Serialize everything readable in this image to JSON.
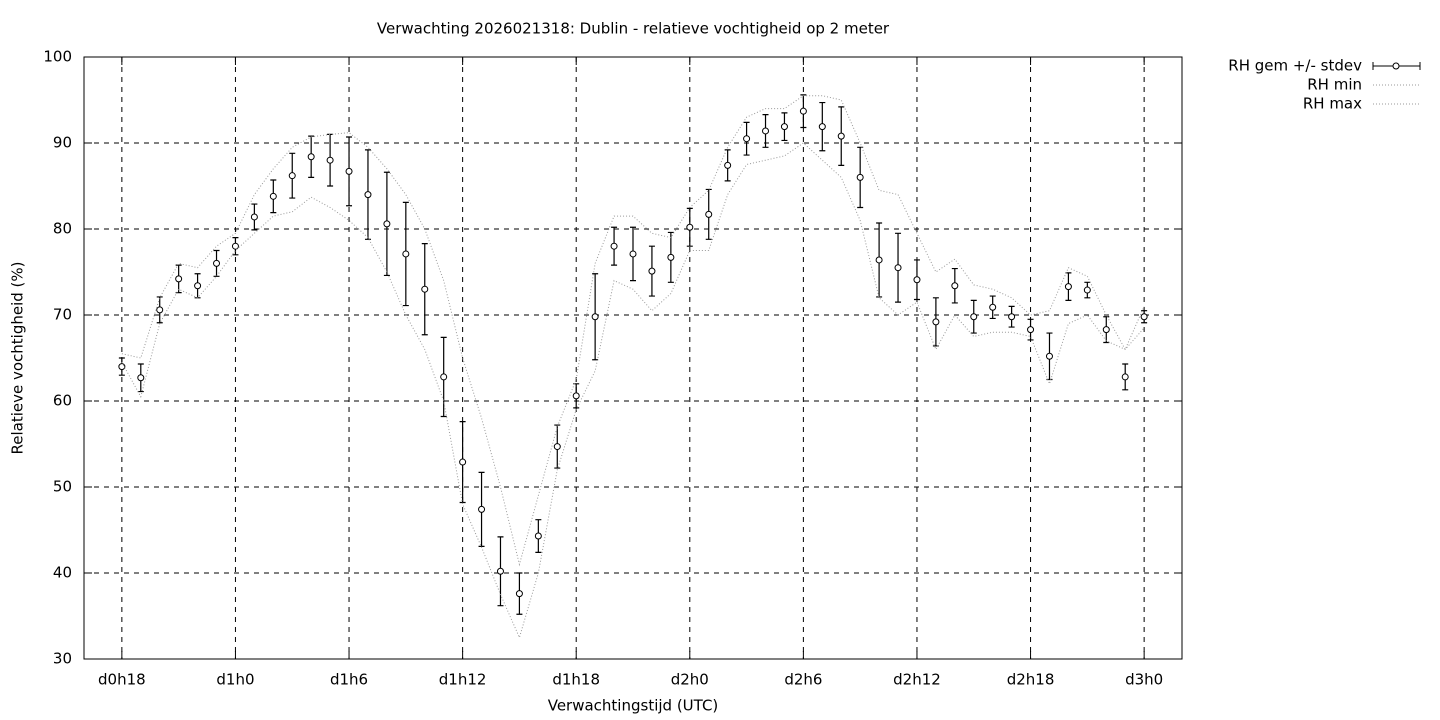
{
  "chart_data": {
    "type": "line",
    "title": "Verwachting 2026021318: Dublin - relatieve vochtigheid op 2 meter",
    "x_label": "Verwachtingstijd (UTC)",
    "y_label": "Relatieve vochtigheid (%)",
    "x": [
      18,
      19,
      20,
      21,
      22,
      23,
      24,
      25,
      26,
      27,
      28,
      29,
      30,
      31,
      32,
      33,
      34,
      35,
      36,
      37,
      38,
      39,
      40,
      41,
      42,
      43,
      44,
      45,
      46,
      47,
      48,
      49,
      50,
      51,
      52,
      53,
      54,
      55,
      56,
      57,
      58,
      59,
      60,
      61,
      62,
      63,
      64,
      65,
      66,
      67,
      68,
      69,
      70,
      71,
      72
    ],
    "xlim": [
      16,
      74
    ],
    "xticks": [
      {
        "value": 18,
        "label": "d0h18"
      },
      {
        "value": 24,
        "label": "d1h0"
      },
      {
        "value": 30,
        "label": "d1h6"
      },
      {
        "value": 36,
        "label": "d1h12"
      },
      {
        "value": 42,
        "label": "d1h18"
      },
      {
        "value": 48,
        "label": "d2h0"
      },
      {
        "value": 54,
        "label": "d2h6"
      },
      {
        "value": 60,
        "label": "d2h12"
      },
      {
        "value": 66,
        "label": "d2h18"
      },
      {
        "value": 72,
        "label": "d3h0"
      }
    ],
    "ylim": [
      30,
      100
    ],
    "yticks": [
      30,
      40,
      50,
      60,
      70,
      80,
      90,
      100
    ],
    "grid": true,
    "legend": "outside-top-right",
    "series": [
      {
        "name": "RH gem +/- stdev",
        "color": "#000000",
        "style": "errorbar",
        "values": [
          64.0,
          62.7,
          70.6,
          74.2,
          73.4,
          76.0,
          78.0,
          81.4,
          83.8,
          86.2,
          88.4,
          88.0,
          86.7,
          84.0,
          80.6,
          77.1,
          73.0,
          62.8,
          52.9,
          47.4,
          40.2,
          37.6,
          44.3,
          54.7,
          60.6,
          69.8,
          78.0,
          77.1,
          75.1,
          76.7,
          80.2,
          81.7,
          87.4,
          90.5,
          91.4,
          91.9,
          93.7,
          91.9,
          90.8,
          86.0,
          76.4,
          75.5,
          74.1,
          69.2,
          73.4,
          69.8,
          70.9,
          69.8,
          68.3,
          65.2,
          73.3,
          72.9,
          68.3,
          62.8,
          69.8
        ],
        "errors": [
          1.0,
          1.6,
          1.5,
          1.6,
          1.4,
          1.5,
          1.0,
          1.5,
          1.9,
          2.6,
          2.4,
          3.0,
          4.0,
          5.2,
          6.0,
          6.0,
          5.3,
          4.6,
          4.7,
          4.3,
          4.0,
          2.4,
          1.9,
          2.5,
          1.4,
          5.0,
          2.2,
          3.1,
          2.9,
          2.9,
          2.2,
          2.9,
          1.8,
          1.9,
          1.9,
          1.6,
          1.9,
          2.8,
          3.4,
          3.5,
          4.3,
          4.0,
          2.3,
          2.8,
          2.0,
          1.9,
          1.3,
          1.2,
          1.2,
          2.7,
          1.6,
          0.9,
          1.5,
          1.5,
          0.7
        ]
      },
      {
        "name": "RH min",
        "color": "#999999",
        "style": "dotted",
        "values": [
          64.5,
          60.5,
          69,
          73,
          72,
          74.5,
          77.5,
          79.5,
          81.5,
          82,
          83.7,
          82.5,
          81,
          79,
          75,
          70,
          66,
          60,
          48,
          43,
          37.5,
          32.5,
          40,
          52,
          59,
          63.5,
          74,
          73,
          70.5,
          72.5,
          77.5,
          77.5,
          84,
          87.5,
          88,
          88.5,
          90,
          88,
          86,
          81,
          72,
          70,
          71.5,
          66,
          70,
          67.5,
          68,
          68,
          67.5,
          62,
          69,
          70,
          67,
          66,
          68.5
        ]
      },
      {
        "name": "RH max",
        "color": "#999999",
        "style": "dotted",
        "values": [
          65.5,
          65,
          72,
          76,
          75.5,
          78,
          79.5,
          84,
          87,
          89.5,
          90.7,
          91,
          91.2,
          89.5,
          87,
          84,
          80,
          74,
          65,
          58,
          50,
          41,
          49,
          57,
          62.5,
          76,
          81.5,
          81.5,
          79.5,
          79,
          82.5,
          84.5,
          89.5,
          93,
          94,
          94,
          95.5,
          95.5,
          95,
          90,
          84.5,
          84,
          79.5,
          75,
          76.5,
          73.5,
          73,
          72,
          70,
          70.5,
          75.5,
          74.5,
          70,
          66,
          71
        ]
      }
    ]
  }
}
